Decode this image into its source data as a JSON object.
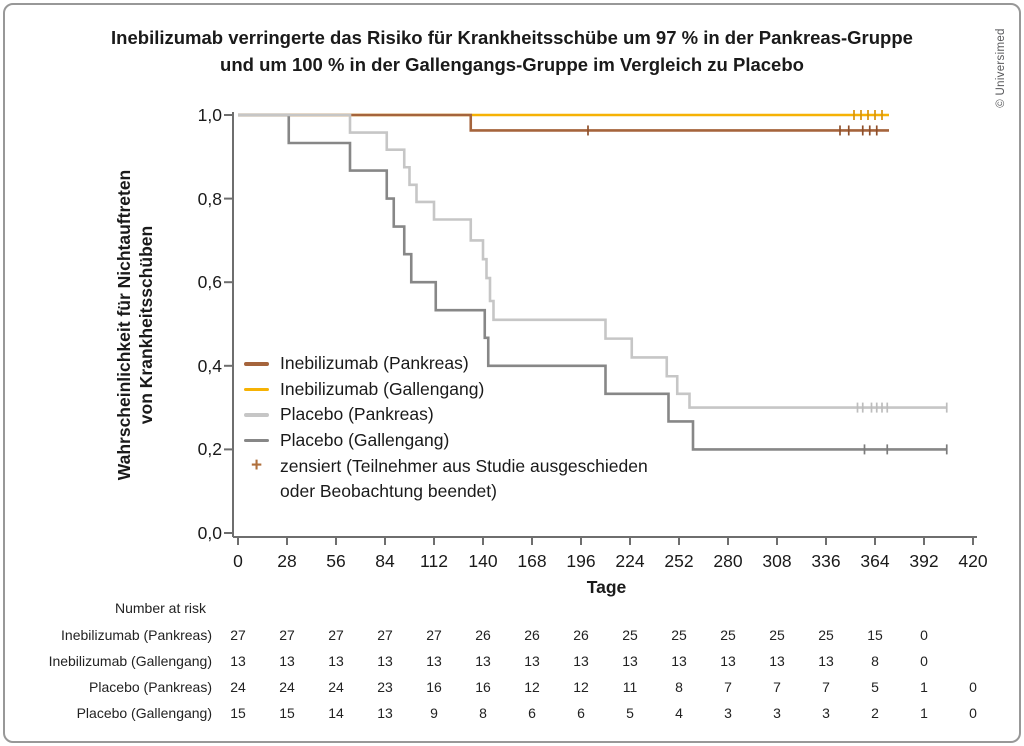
{
  "title": {
    "line1": "Inebilizumab verringerte das Risiko für Krankheitsschübe um 97 % in der Pankreas-Gruppe",
    "line2": "und um 100 % in der Gallengangs-Gruppe im Vergleich zu Placebo"
  },
  "credit": "© Universimed",
  "axes": {
    "x": {
      "title": "Tage",
      "tick_labels": [
        "0",
        "28",
        "56",
        "84",
        "112",
        "140",
        "168",
        "196",
        "224",
        "252",
        "280",
        "308",
        "336",
        "364",
        "392",
        "420"
      ],
      "tick_values": [
        0,
        28,
        56,
        84,
        112,
        140,
        168,
        196,
        224,
        252,
        280,
        308,
        336,
        364,
        392,
        420
      ],
      "range": [
        0,
        420
      ]
    },
    "y": {
      "label_line1": "Wahrscheinlichkeit für Nichtauftreten",
      "label_line2": "von Krankheitsschüben",
      "tick_labels": [
        "1,0",
        "0,8",
        "0,6",
        "0,4",
        "0,2",
        "0,0"
      ],
      "tick_values": [
        1.0,
        0.8,
        0.6,
        0.4,
        0.2,
        0.0
      ],
      "range": [
        0,
        1
      ]
    }
  },
  "legend": {
    "items": [
      {
        "label": "Inebilizumab (Pankreas)",
        "color": "#A5643C",
        "type": "line"
      },
      {
        "label": "Inebilizumab (Gallengang)",
        "color": "#F6B204",
        "type": "line"
      },
      {
        "label": "Placebo (Pankreas)",
        "color": "#C6C6C6",
        "type": "line"
      },
      {
        "label": "Placebo (Gallengang)",
        "color": "#878787",
        "type": "line"
      },
      {
        "label": "zensiert (Teilnehmer aus Studie ausgeschieden",
        "label_line2": "oder Beobachtung beendet)",
        "color": "#B0703C",
        "type": "plus"
      }
    ]
  },
  "chart_data": {
    "type": "line",
    "subtype": "kaplan-meier-step",
    "title": "Inebilizumab verringerte das Risiko für Krankheitsschübe um 97 % in der Pankreas-Gruppe und um 100 % in der Gallengangs-Gruppe im Vergleich zu Placebo",
    "xlabel": "Tage",
    "ylabel": "Wahrscheinlichkeit für Nichtauftreten von Krankheitsschüben",
    "xlim": [
      0,
      420
    ],
    "ylim": [
      0,
      1
    ],
    "grid": false,
    "legend_position": "inside-left",
    "series": [
      {
        "name": "Inebilizumab (Pankreas)",
        "color": "#A5643C",
        "censor_color": "#8F4F2A",
        "steps": [
          [
            0,
            1.0
          ],
          [
            133,
            0.963
          ]
        ],
        "end_day": 372,
        "censored_days": [
          200,
          344,
          349,
          357,
          361,
          365
        ]
      },
      {
        "name": "Inebilizumab (Gallengang)",
        "color": "#F6B204",
        "censor_color": "#D9930B",
        "steps": [
          [
            0,
            1.0
          ]
        ],
        "end_day": 372,
        "censored_days": [
          352,
          356,
          360,
          364,
          368
        ]
      },
      {
        "name": "Placebo (Pankreas)",
        "color": "#C6C6C6",
        "censor_color": "#BDBDBD",
        "steps": [
          [
            0,
            1.0
          ],
          [
            64,
            0.958
          ],
          [
            85,
            0.917
          ],
          [
            95,
            0.875
          ],
          [
            98,
            0.833
          ],
          [
            102,
            0.792
          ],
          [
            112,
            0.75
          ],
          [
            133,
            0.7
          ],
          [
            140,
            0.655
          ],
          [
            142,
            0.61
          ],
          [
            144,
            0.555
          ],
          [
            146,
            0.51
          ],
          [
            210,
            0.465
          ],
          [
            225,
            0.42
          ],
          [
            245,
            0.375
          ],
          [
            251,
            0.333
          ],
          [
            258,
            0.3
          ]
        ],
        "end_day": 405,
        "censored_days": [
          354,
          357,
          362,
          365,
          368,
          371,
          405
        ]
      },
      {
        "name": "Placebo (Gallengang)",
        "color": "#878787",
        "censor_color": "#7C7C7C",
        "steps": [
          [
            0,
            1.0
          ],
          [
            29,
            0.933
          ],
          [
            64,
            0.867
          ],
          [
            85,
            0.8
          ],
          [
            89,
            0.733
          ],
          [
            95,
            0.667
          ],
          [
            99,
            0.6
          ],
          [
            113,
            0.533
          ],
          [
            141,
            0.467
          ],
          [
            143,
            0.4
          ],
          [
            210,
            0.333
          ],
          [
            246,
            0.267
          ],
          [
            260,
            0.2
          ]
        ],
        "end_day": 405,
        "censored_days": [
          358,
          371,
          405
        ]
      }
    ],
    "draw_order": [
      1,
      0,
      3,
      2
    ]
  },
  "risk_table": {
    "header": "Number at risk",
    "rows": [
      {
        "label": "Inebilizumab (Pankreas)",
        "counts": [
          27,
          27,
          27,
          27,
          27,
          26,
          26,
          26,
          25,
          25,
          25,
          25,
          25,
          15,
          0
        ]
      },
      {
        "label": "Inebilizumab (Gallengang)",
        "counts": [
          13,
          13,
          13,
          13,
          13,
          13,
          13,
          13,
          13,
          13,
          13,
          13,
          13,
          8,
          0
        ]
      },
      {
        "label": "Placebo (Pankreas)",
        "counts": [
          24,
          24,
          24,
          23,
          16,
          16,
          12,
          12,
          11,
          8,
          7,
          7,
          7,
          5,
          1,
          0
        ]
      },
      {
        "label": "Placebo (Gallengang)",
        "counts": [
          15,
          15,
          14,
          13,
          9,
          8,
          6,
          6,
          5,
          4,
          3,
          3,
          3,
          2,
          1,
          0
        ]
      }
    ]
  },
  "colors": {
    "axis": "#6E6E6E",
    "text": "#1A1A1A",
    "credit": "#58595B",
    "frame_border": "#989898"
  }
}
